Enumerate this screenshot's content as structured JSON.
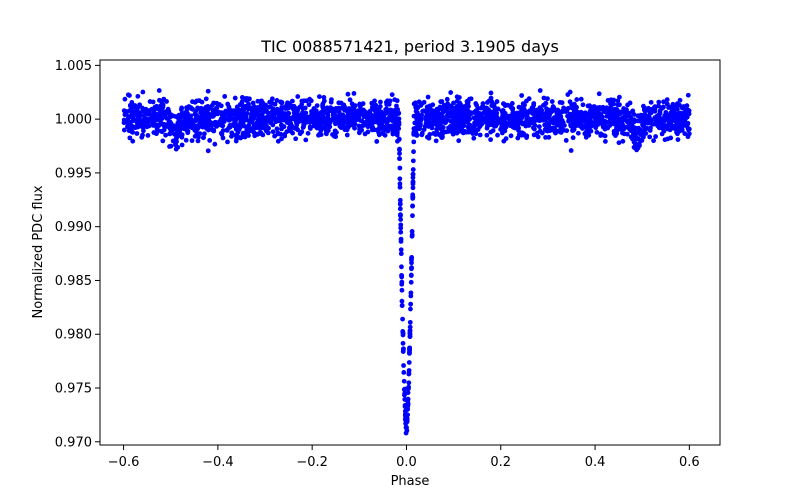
{
  "chart_data": {
    "type": "scatter",
    "title": "TIC 0088571421, period 3.1905 days",
    "xlabel": "Phase",
    "ylabel": "Normalized PDC flux",
    "xlim": [
      -0.65,
      0.665
    ],
    "ylim": [
      0.9697,
      1.0055
    ],
    "x_ticks": [
      -0.6,
      -0.4,
      -0.2,
      0.0,
      0.2,
      0.4,
      0.6
    ],
    "x_tick_labels": [
      "−0.6",
      "−0.4",
      "−0.2",
      "0.0",
      "0.2",
      "0.4",
      "0.6"
    ],
    "y_ticks": [
      0.97,
      0.975,
      0.98,
      0.985,
      0.99,
      0.995,
      1.0,
      1.005
    ],
    "y_tick_labels": [
      "0.970",
      "0.975",
      "0.980",
      "0.985",
      "0.990",
      "0.995",
      "1.000",
      "1.005"
    ],
    "marker_color": "#0000ff",
    "series": [
      {
        "name": "PDC flux",
        "baseline": 1.0,
        "phase_range": [
          -0.6,
          0.6
        ],
        "transit_center": 0.0,
        "transit_depth": 0.0285,
        "transit_half_width": 0.016,
        "secondary_dips": [
          -0.49,
          0.49
        ],
        "secondary_dip_depth": 0.0015
      }
    ]
  }
}
